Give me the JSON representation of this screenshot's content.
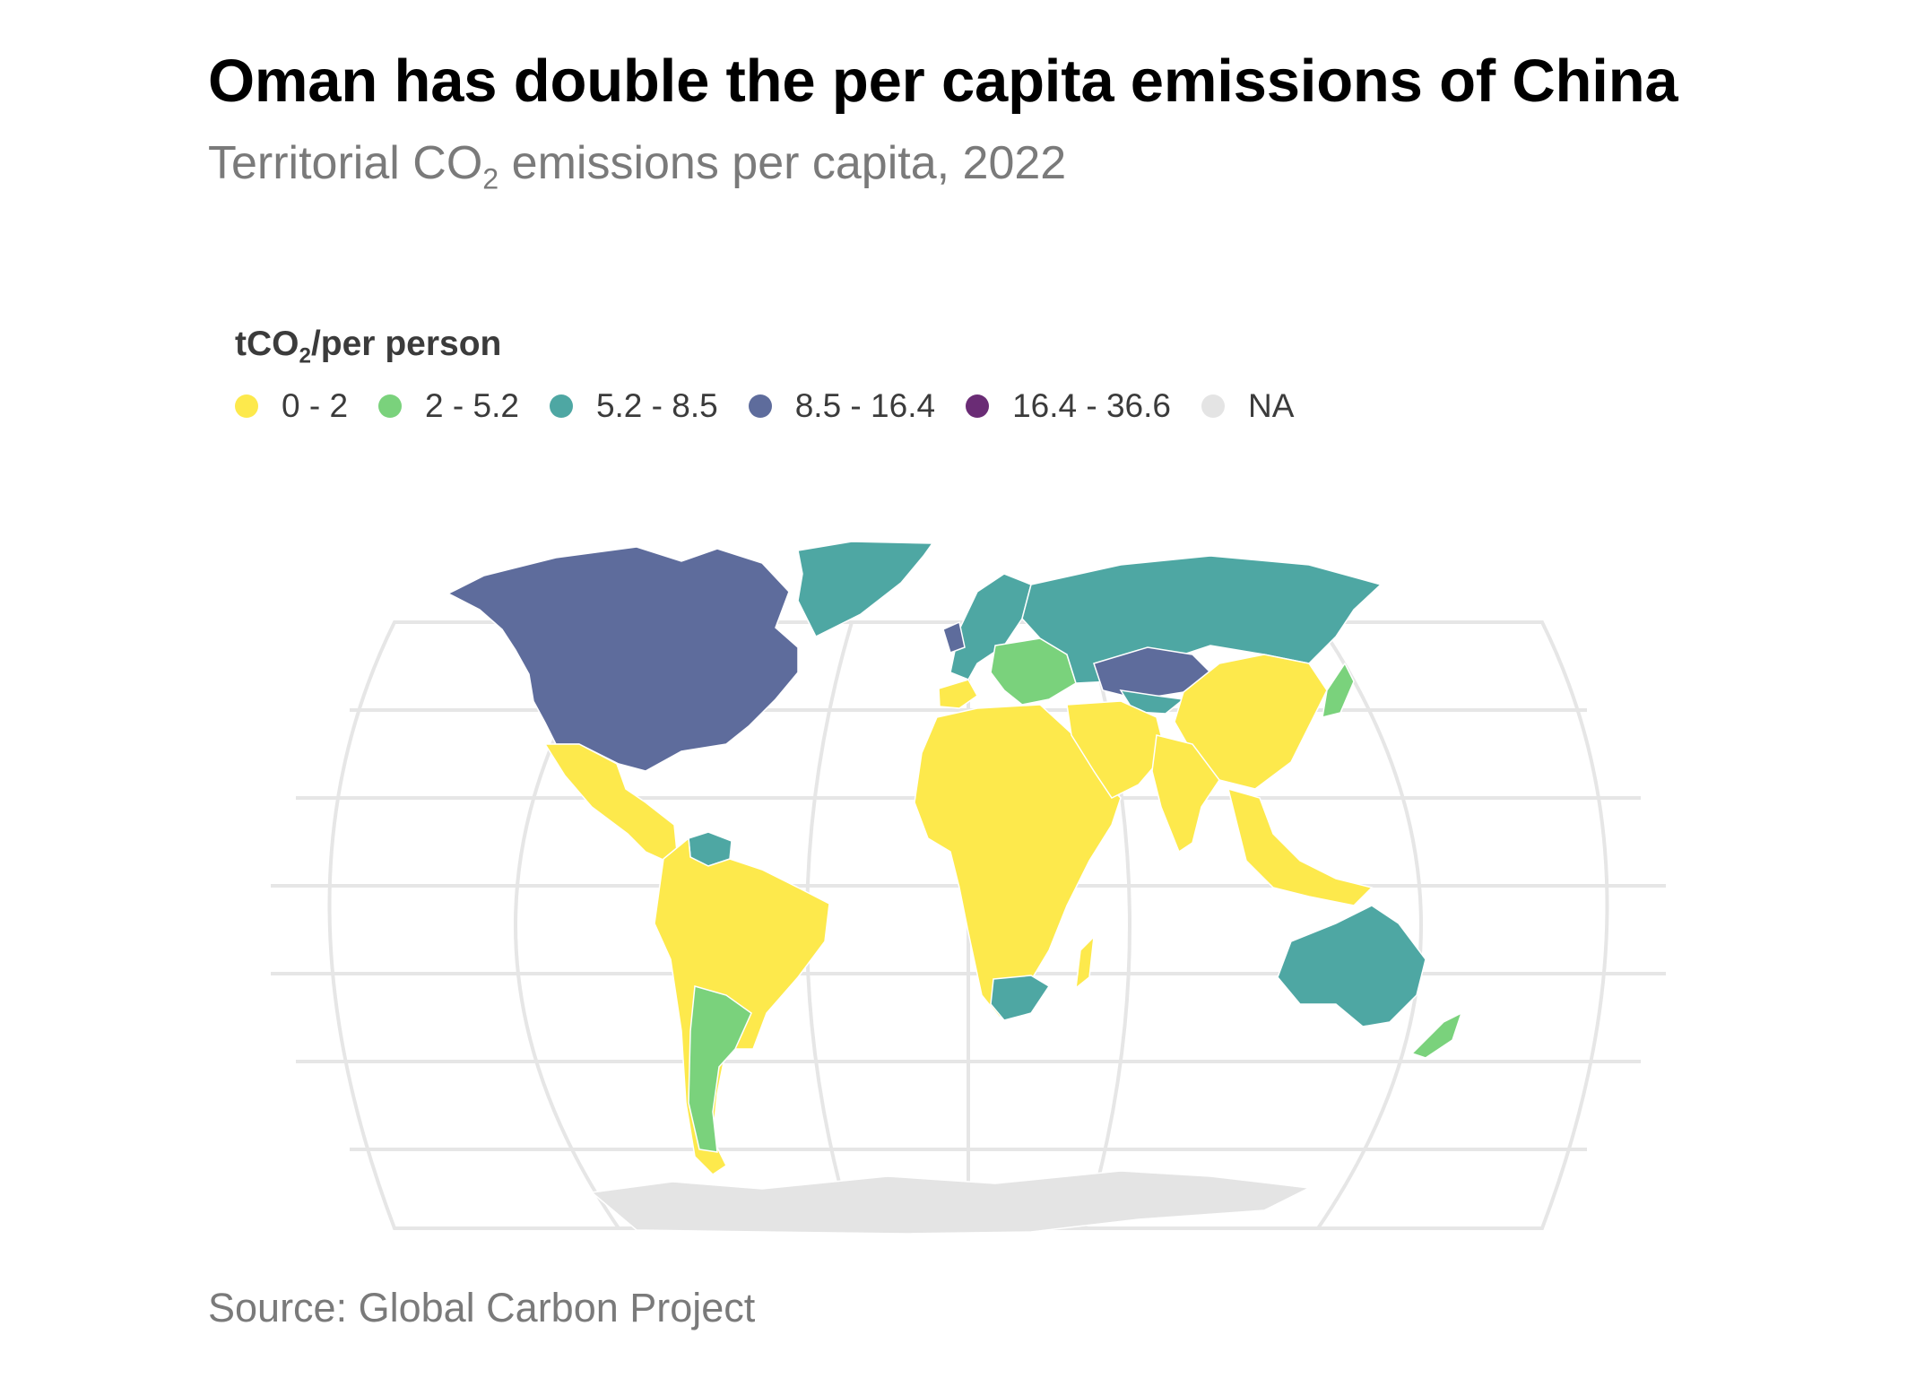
{
  "title": "Oman has double the per capita emissions of China",
  "subtitle": {
    "prefix": "Territorial CO",
    "subscript": "2",
    "suffix": " emissions per capita, 2022"
  },
  "legend": {
    "title_prefix": "tCO",
    "title_subscript": "2",
    "title_suffix": "/per person",
    "items": [
      {
        "label": "0 - 2",
        "color": "#fde94c"
      },
      {
        "label": "2 - 5.2",
        "color": "#7ad27c"
      },
      {
        "label": "5.2 - 8.5",
        "color": "#4ea7a3"
      },
      {
        "label": "8.5 - 16.4",
        "color": "#5e6c9c"
      },
      {
        "label": "16.4 - 36.6",
        "color": "#6a2c75"
      },
      {
        "label": "NA",
        "color": "#e4e4e4"
      }
    ]
  },
  "map": {
    "projection": "Robinson",
    "graticule_color": "#e6e6e6",
    "border_color": "#ffffff",
    "regions": [
      {
        "name": "North America",
        "class": "8.5 - 16.4"
      },
      {
        "name": "Greenland",
        "class": "5.2 - 8.5"
      },
      {
        "name": "Mexico",
        "class": "0 - 2"
      },
      {
        "name": "Central America",
        "class": "0 - 2"
      },
      {
        "name": "Venezuela",
        "class": "5.2 - 8.5"
      },
      {
        "name": "South America",
        "class": "0 - 2"
      },
      {
        "name": "Argentina",
        "class": "2 - 5.2"
      },
      {
        "name": "Northern Europe",
        "class": "5.2 - 8.5"
      },
      {
        "name": "Eastern Europe",
        "class": "2 - 5.2"
      },
      {
        "name": "Iberia",
        "class": "0 - 2"
      },
      {
        "name": "Russia",
        "class": "5.2 - 8.5"
      },
      {
        "name": "Kazakhstan",
        "class": "8.5 - 16.4"
      },
      {
        "name": "Africa",
        "class": "0 - 2"
      },
      {
        "name": "South Africa",
        "class": "5.2 - 8.5"
      },
      {
        "name": "Middle East",
        "class": "0 - 2"
      },
      {
        "name": "China",
        "class": "0 - 2"
      },
      {
        "name": "India",
        "class": "0 - 2"
      },
      {
        "name": "Southeast Asia",
        "class": "0 - 2"
      },
      {
        "name": "Japan",
        "class": "2 - 5.2"
      },
      {
        "name": "Australia",
        "class": "5.2 - 8.5"
      },
      {
        "name": "New Zealand",
        "class": "2 - 5.2"
      },
      {
        "name": "Antarctica",
        "class": "NA"
      }
    ]
  },
  "source": "Source: Global Carbon Project"
}
